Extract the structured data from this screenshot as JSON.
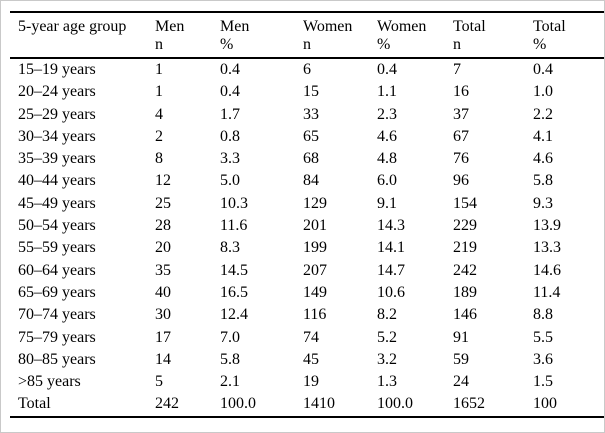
{
  "table": {
    "columns": [
      {
        "label": "5-year age group",
        "sub": ""
      },
      {
        "label": "Men",
        "sub": "n"
      },
      {
        "label": "Men",
        "sub": "%"
      },
      {
        "label": "Women",
        "sub": "n"
      },
      {
        "label": "Women",
        "sub": "%"
      },
      {
        "label": "Total",
        "sub": "n"
      },
      {
        "label": "Total",
        "sub": "%"
      }
    ],
    "rows": [
      [
        "15–19 years",
        "1",
        "0.4",
        "6",
        "0.4",
        "7",
        "0.4"
      ],
      [
        "20–24 years",
        "1",
        "0.4",
        "15",
        "1.1",
        "16",
        "1.0"
      ],
      [
        "25–29 years",
        "4",
        "1.7",
        "33",
        "2.3",
        "37",
        "2.2"
      ],
      [
        "30–34 years",
        "2",
        "0.8",
        "65",
        "4.6",
        "67",
        "4.1"
      ],
      [
        "35–39 years",
        "8",
        "3.3",
        "68",
        "4.8",
        "76",
        "4.6"
      ],
      [
        "40–44 years",
        "12",
        "5.0",
        "84",
        "6.0",
        "96",
        "5.8"
      ],
      [
        "45–49 years",
        "25",
        "10.3",
        "129",
        "9.1",
        "154",
        "9.3"
      ],
      [
        "50–54 years",
        "28",
        "11.6",
        "201",
        "14.3",
        "229",
        "13.9"
      ],
      [
        "55–59 years",
        "20",
        "8.3",
        "199",
        "14.1",
        "219",
        "13.3"
      ],
      [
        "60–64 years",
        "35",
        "14.5",
        "207",
        "14.7",
        "242",
        "14.6"
      ],
      [
        "65–69 years",
        "40",
        "16.5",
        "149",
        "10.6",
        "189",
        "11.4"
      ],
      [
        "70–74 years",
        "30",
        "12.4",
        "116",
        "8.2",
        "146",
        "8.8"
      ],
      [
        "75–79 years",
        "17",
        "7.0",
        "74",
        "5.2",
        "91",
        "5.5"
      ],
      [
        "80–85 years",
        "14",
        "5.8",
        "45",
        "3.2",
        "59",
        "3.6"
      ],
      [
        ">85 years",
        "5",
        "2.1",
        "19",
        "1.3",
        "24",
        "1.5"
      ],
      [
        "Total",
        "242",
        "100.0",
        "1410",
        "100.0",
        "1652",
        "100"
      ]
    ],
    "colors": {
      "text": "#000000",
      "rule": "#000000",
      "frame": "#c9c9c9",
      "background": "#ffffff"
    }
  }
}
